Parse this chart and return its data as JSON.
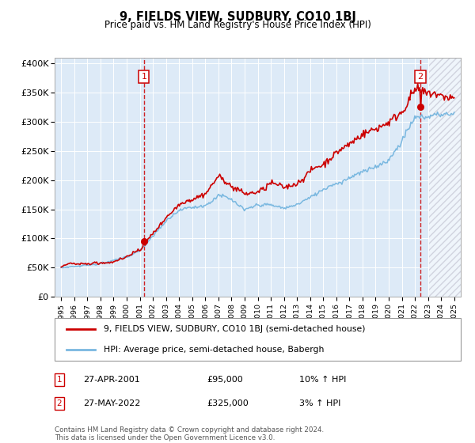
{
  "title": "9, FIELDS VIEW, SUDBURY, CO10 1BJ",
  "subtitle": "Price paid vs. HM Land Registry's House Price Index (HPI)",
  "xlim": [
    1994.5,
    2025.5
  ],
  "ylim": [
    0,
    410000
  ],
  "yticks": [
    0,
    50000,
    100000,
    150000,
    200000,
    250000,
    300000,
    350000,
    400000
  ],
  "ytick_labels": [
    "£0",
    "£50K",
    "£100K",
    "£150K",
    "£200K",
    "£250K",
    "£300K",
    "£350K",
    "£400K"
  ],
  "xticks": [
    1995,
    1996,
    1997,
    1998,
    1999,
    2000,
    2001,
    2002,
    2003,
    2004,
    2005,
    2006,
    2007,
    2008,
    2009,
    2010,
    2011,
    2012,
    2013,
    2014,
    2015,
    2016,
    2017,
    2018,
    2019,
    2020,
    2021,
    2022,
    2023,
    2024,
    2025
  ],
  "hpi_color": "#7ab8e0",
  "price_color": "#cc0000",
  "marker_color": "#cc0000",
  "dashed_line_color": "#cc0000",
  "annotation_box_color": "#cc0000",
  "bg_color": "#ddeaf7",
  "grid_color": "#ffffff",
  "purchase1_x": 2001.32,
  "purchase1_y": 95000,
  "purchase2_x": 2022.41,
  "purchase2_y": 325000,
  "hatch_start": 2023.08,
  "legend_line1": "9, FIELDS VIEW, SUDBURY, CO10 1BJ (semi-detached house)",
  "legend_line2": "HPI: Average price, semi-detached house, Babergh",
  "note1_num": "1",
  "note1_date": "27-APR-2001",
  "note1_price": "£95,000",
  "note1_hpi": "10% ↑ HPI",
  "note2_num": "2",
  "note2_date": "27-MAY-2022",
  "note2_price": "£325,000",
  "note2_hpi": "3% ↑ HPI",
  "footer": "Contains HM Land Registry data © Crown copyright and database right 2024.\nThis data is licensed under the Open Government Licence v3.0."
}
